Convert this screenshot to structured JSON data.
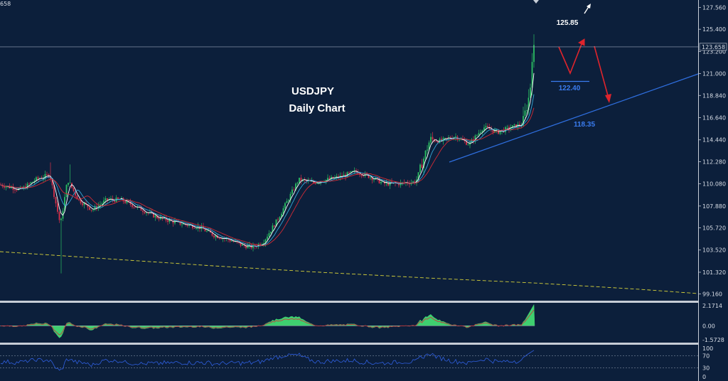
{
  "header": {
    "corner_value": "658"
  },
  "title": {
    "line1": "USDJPY",
    "line2": "Daily Chart"
  },
  "colors": {
    "background": "#0c1f3b",
    "up_candle": "#2bbf63",
    "down_candle": "#d9324a",
    "ma_fast": "#ffffff",
    "ma_mid": "#35a8d8",
    "ma_slow": "#d12b36",
    "trendline": "#2f6fe0",
    "long_ma": "#d6d23a",
    "projection": "#e0242c",
    "macd_hist": "#3fcf6f",
    "rsi_line": "#2f5fe0"
  },
  "chart_data": [
    {
      "type": "candlestick",
      "title": "USDJPY Daily Chart",
      "ylim": [
        98.5,
        128.3
      ],
      "y_ticks": [
        "127.560",
        "125.400",
        "123.200",
        "121.000",
        "118.840",
        "116.640",
        "114.440",
        "112.280",
        "110.080",
        "107.880",
        "105.720",
        "103.520",
        "101.320",
        "99.160"
      ],
      "current_price": "123.658",
      "price_path_anchors": [
        [
          0,
          110.0
        ],
        [
          30,
          109.5
        ],
        [
          50,
          110.5
        ],
        [
          70,
          111.0
        ],
        [
          85,
          106.0
        ],
        [
          95,
          110.5
        ],
        [
          110,
          108.5
        ],
        [
          130,
          107.5
        ],
        [
          150,
          108.5
        ],
        [
          170,
          108.5
        ],
        [
          200,
          107.5
        ],
        [
          220,
          106.8
        ],
        [
          250,
          106.2
        ],
        [
          280,
          105.8
        ],
        [
          300,
          105.0
        ],
        [
          320,
          104.6
        ],
        [
          340,
          104.0
        ],
        [
          355,
          103.8
        ],
        [
          370,
          104.3
        ],
        [
          390,
          106.5
        ],
        [
          405,
          108.5
        ],
        [
          420,
          110.5
        ],
        [
          440,
          110.2
        ],
        [
          460,
          110.5
        ],
        [
          480,
          110.8
        ],
        [
          500,
          111.3
        ],
        [
          520,
          110.8
        ],
        [
          540,
          110.1
        ],
        [
          560,
          110.1
        ],
        [
          585,
          110.3
        ],
        [
          605,
          114.5
        ],
        [
          620,
          114.3
        ],
        [
          640,
          114.8
        ],
        [
          660,
          114.0
        ],
        [
          680,
          115.7
        ],
        [
          700,
          115.2
        ],
        [
          720,
          115.7
        ],
        [
          735,
          116.0
        ],
        [
          745,
          119.0
        ],
        [
          752,
          124.5
        ]
      ],
      "annotations": [
        {
          "label": "125.85",
          "price": 125.85,
          "color": "#ffffff"
        },
        {
          "label": "122.40",
          "price": 122.4,
          "color": "#3a7cf0"
        },
        {
          "label": "118.35",
          "price": 118.35,
          "color": "#3a7cf0"
        }
      ]
    },
    {
      "type": "histogram",
      "indicator": "MACD",
      "y_ticks": [
        "2.1714",
        "0.00",
        "-1.5728"
      ],
      "ylim": [
        -1.5728,
        2.1714
      ]
    },
    {
      "type": "line",
      "indicator": "RSI",
      "y_ticks": [
        "100",
        "70",
        "30",
        "0"
      ],
      "ylim": [
        0,
        100
      ],
      "levels": [
        70,
        30
      ]
    }
  ]
}
